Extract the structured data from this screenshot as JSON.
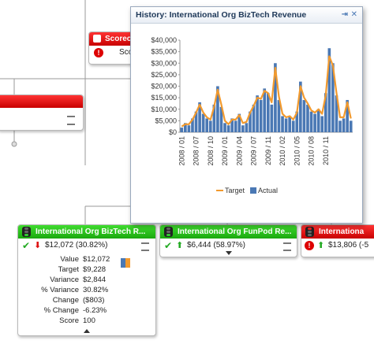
{
  "chart_data": {
    "type": "bar_line",
    "title": "History: International Org BizTech Revenue",
    "categories": [
      "2008 / 01",
      null,
      null,
      null,
      "2008 / 07",
      null,
      null,
      null,
      "2008 / 10",
      null,
      null,
      null,
      "2009 / 01",
      null,
      null,
      null,
      "2009 / 04",
      null,
      null,
      null,
      "2009 / 07",
      null,
      null,
      null,
      "2009 / 11",
      null,
      null,
      null,
      "2010 / 02",
      null,
      null,
      null,
      "2010 / 05",
      null,
      null,
      null,
      "2010 / 08",
      null,
      null,
      null,
      "2010 / 11",
      null,
      null,
      null,
      null,
      null,
      null,
      null
    ],
    "series": [
      {
        "name": "Target",
        "color": "#f29a2e",
        "kind": "line",
        "values": [
          2500,
          3500,
          3500,
          5500,
          8500,
          12000,
          8500,
          6500,
          5500,
          11000,
          18500,
          12000,
          5000,
          3500,
          5500,
          5500,
          7500,
          4000,
          4500,
          8500,
          11500,
          15000,
          14500,
          18000,
          17000,
          13000,
          28000,
          15500,
          8000,
          6500,
          7000,
          5500,
          8500,
          20000,
          15000,
          12500,
          9500,
          8500,
          10000,
          8000,
          16000,
          33000,
          29000,
          17000,
          6500,
          6500,
          13000,
          6000
        ]
      },
      {
        "name": "Actual",
        "color": "#4a78b4",
        "kind": "bar",
        "values": [
          2000,
          4000,
          3000,
          6000,
          9000,
          13000,
          8000,
          6000,
          5000,
          12000,
          20000,
          11000,
          4000,
          3000,
          6000,
          5000,
          8000,
          3000,
          4000,
          9000,
          12000,
          16000,
          14000,
          19000,
          17000,
          12000,
          30000,
          14000,
          7000,
          6000,
          7000,
          5000,
          9000,
          22000,
          14000,
          12000,
          9000,
          8000,
          10000,
          7000,
          17000,
          36500,
          30000,
          16000,
          5000,
          6000,
          14000,
          5000
        ]
      }
    ],
    "ylim": [
      0,
      40000
    ],
    "yticks": [
      {
        "value": 0,
        "label": "$0"
      },
      {
        "value": 5000,
        "label": "$5,000"
      },
      {
        "value": 10000,
        "label": "$10,000"
      },
      {
        "value": 15000,
        "label": "$15,000"
      },
      {
        "value": 20000,
        "label": "$20,000"
      },
      {
        "value": 25000,
        "label": "$25,000"
      },
      {
        "value": 30000,
        "label": "$30,000"
      },
      {
        "value": 35000,
        "label": "$35,000"
      },
      {
        "value": 40000,
        "label": "$40,000"
      }
    ],
    "grid": false
  },
  "scorecard": {
    "title": "Scorec",
    "text": "Sco"
  },
  "nodes": [
    {
      "title": "International Org BizTech R...",
      "summary": "$12,072 (30.82%)",
      "details": [
        [
          "Value",
          "$12,072"
        ],
        [
          "Target",
          "$9,228"
        ],
        [
          "Variance",
          "$2,844"
        ],
        [
          "% Variance",
          "30.82%"
        ],
        [
          "Change",
          "($803)"
        ],
        [
          "% Change",
          "-6.23%"
        ],
        [
          "Score",
          "100"
        ]
      ]
    },
    {
      "title": "International Org FunPod Re...",
      "summary": "$6,444 (58.97%)"
    },
    {
      "title": "Internationa",
      "summary": "$13,806 (-5"
    }
  ]
}
